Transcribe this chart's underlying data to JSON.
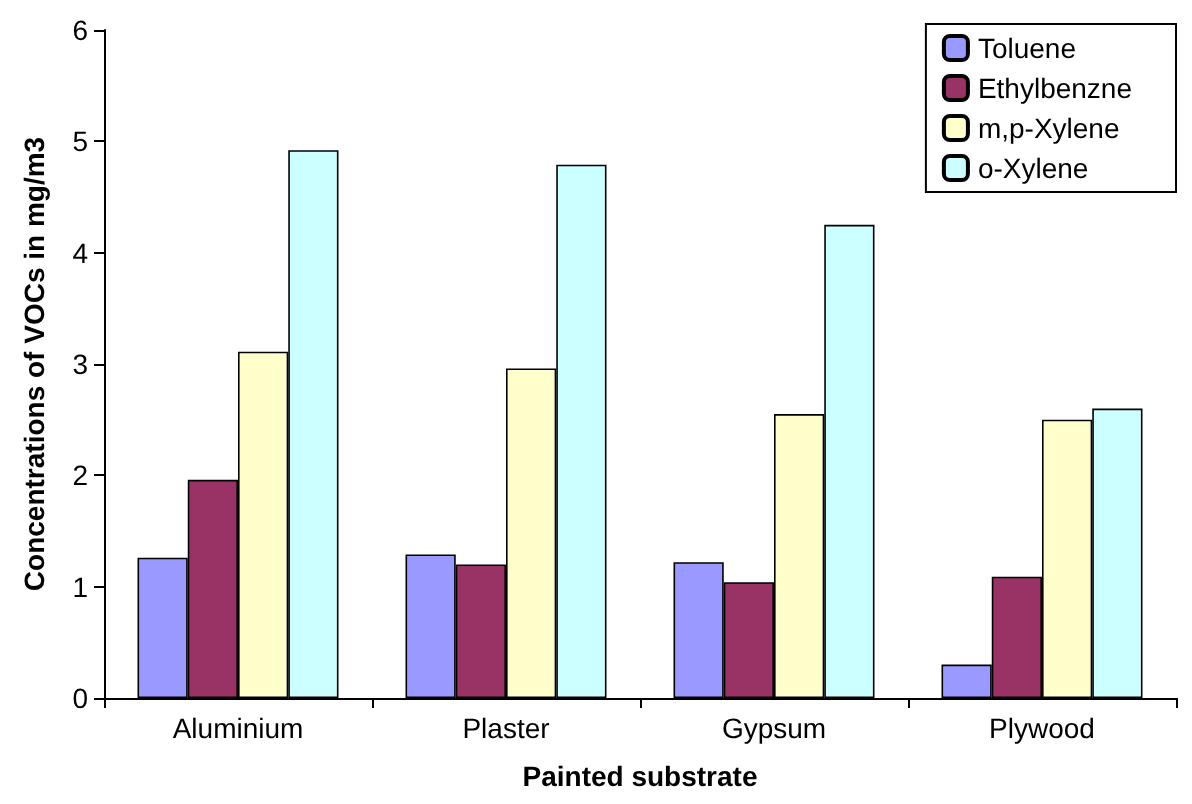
{
  "chart_data": {
    "type": "bar",
    "xlabel": "Painted substrate",
    "ylabel": "Concentrations of VOCs in mg/m3",
    "categories": [
      "Aluminium",
      "Plaster",
      "Gypsum",
      "Plywood"
    ],
    "series": [
      {
        "name": "Toluene",
        "color": "#9999ff",
        "values": [
          1.26,
          1.29,
          1.22,
          0.3
        ]
      },
      {
        "name": "Ethylbenzne",
        "color": "#993366",
        "values": [
          1.96,
          1.2,
          1.04,
          1.09
        ]
      },
      {
        "name": "m,p-Xylene",
        "color": "#ffffcc",
        "values": [
          3.11,
          2.96,
          2.55,
          2.5
        ]
      },
      {
        "name": "o-Xylene",
        "color": "#ccffff",
        "values": [
          4.92,
          4.79,
          4.25,
          2.6
        ]
      }
    ],
    "ylim": [
      0,
      6
    ],
    "yticks": [
      0,
      1,
      2,
      3,
      4,
      5,
      6
    ],
    "grid": false,
    "legend": "top right"
  }
}
